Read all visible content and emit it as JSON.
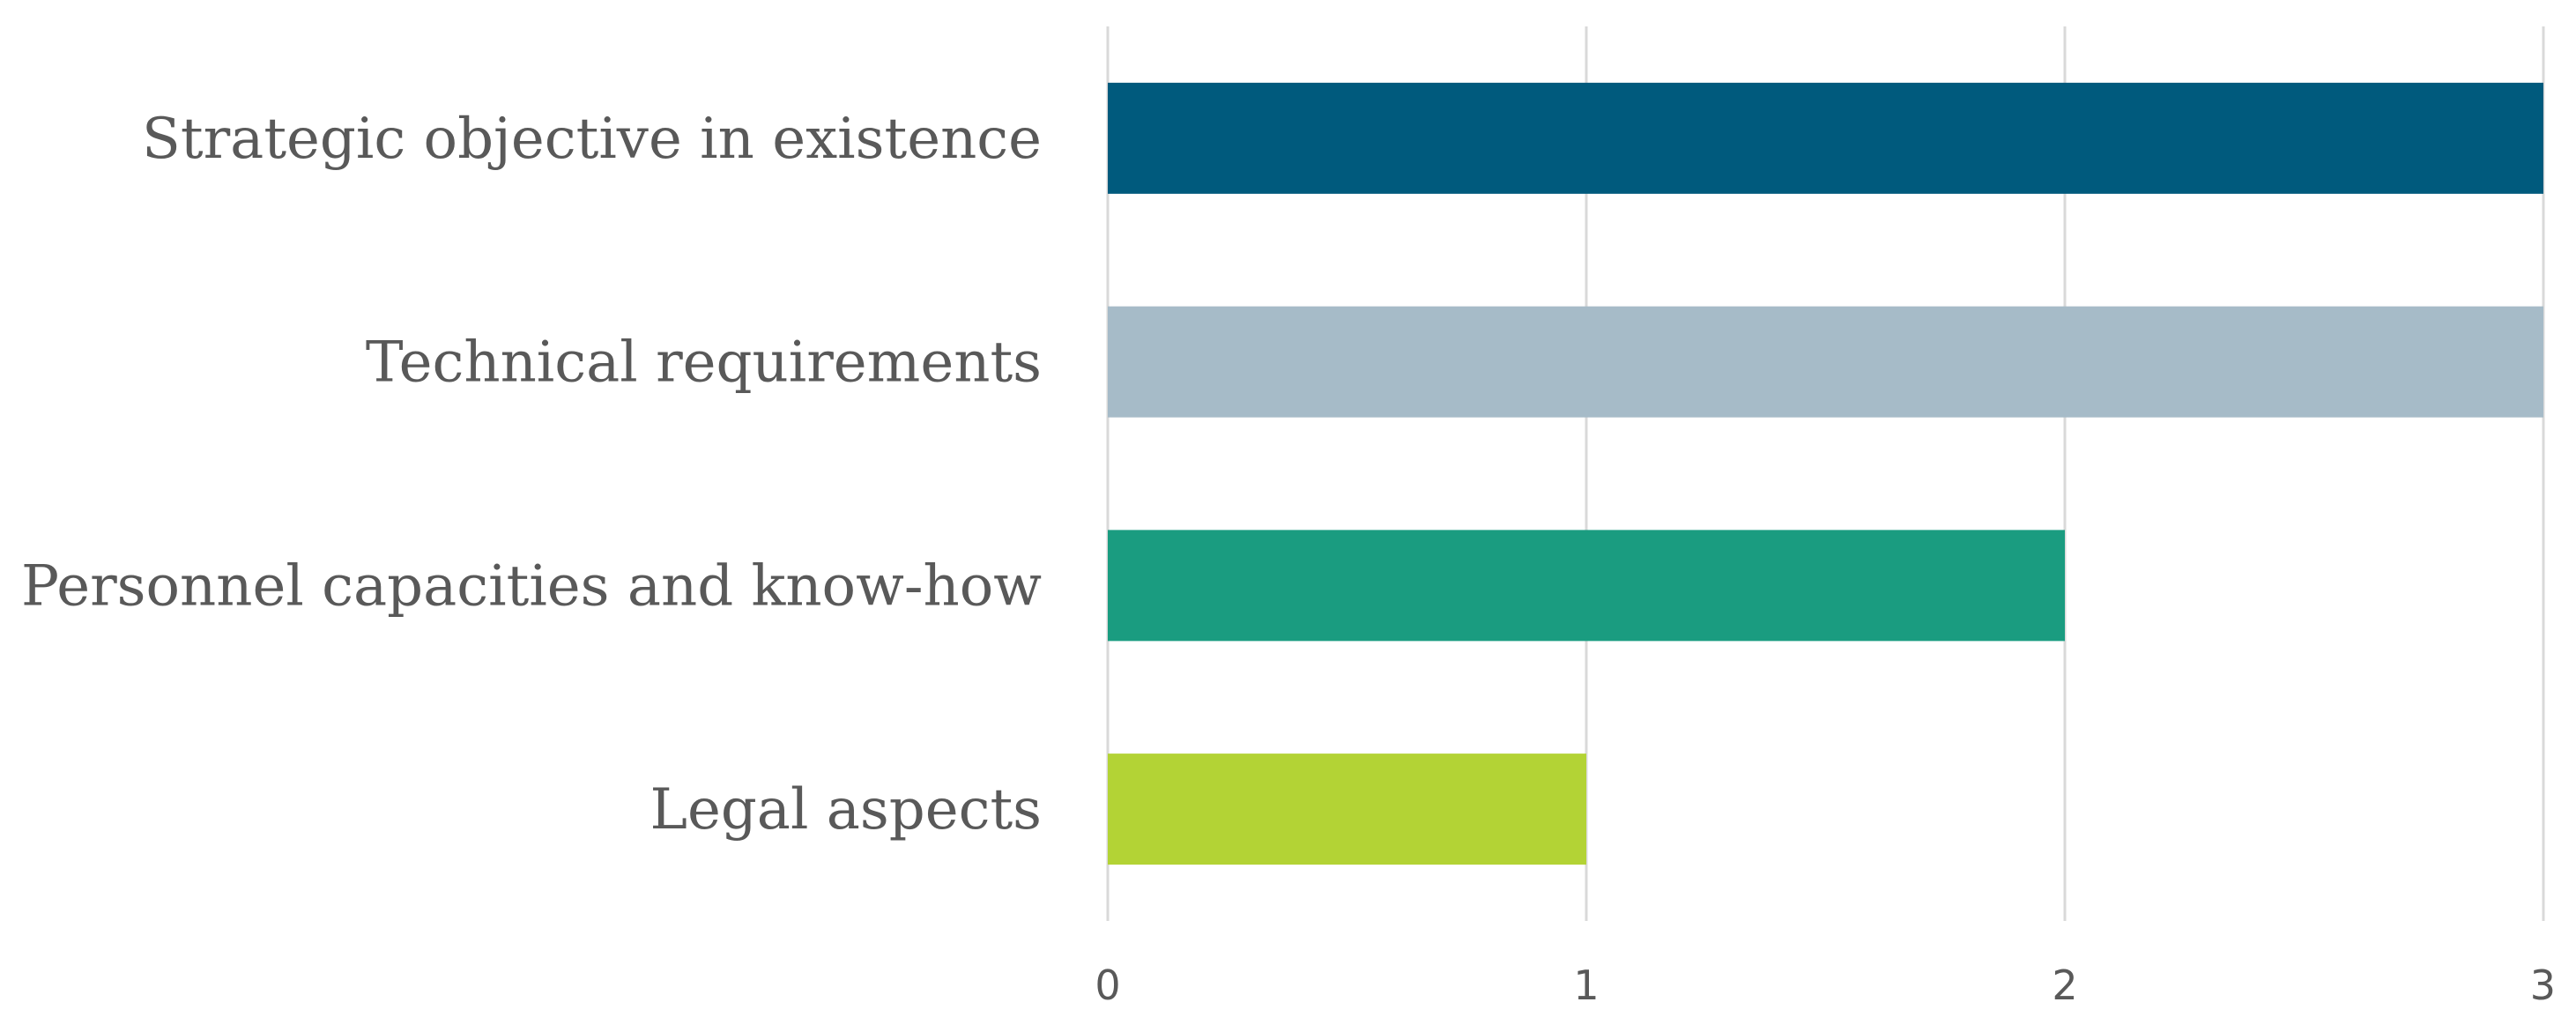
{
  "chart_data": {
    "type": "bar",
    "orientation": "horizontal",
    "categories": [
      "Strategic objective in existence",
      "Technical requirements",
      "Personnel capacities and know-how",
      "Legal aspects"
    ],
    "values": [
      3,
      3,
      2,
      1
    ],
    "colors": [
      "#005a7d",
      "#a6bbc8",
      "#1a9c80",
      "#b3d335"
    ],
    "title": "",
    "xlabel": "",
    "ylabel": "",
    "xlim": [
      0,
      3
    ],
    "xticks": [
      "0",
      "1",
      "2",
      "3"
    ],
    "grid": true,
    "legend": "none"
  }
}
